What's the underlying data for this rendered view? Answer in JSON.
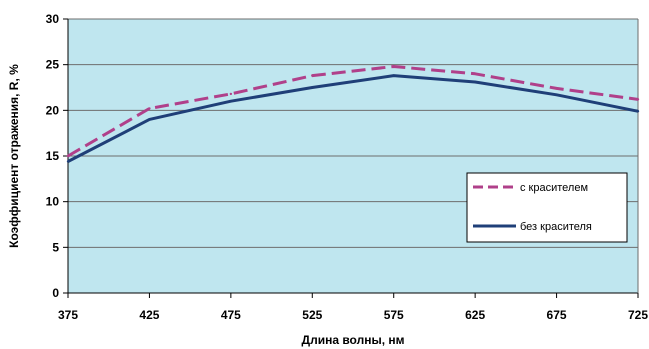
{
  "chart_data": {
    "type": "line",
    "xlabel": "Длина волны, нм",
    "ylabel": "Коэффициент отражения, R, %",
    "x": [
      375,
      425,
      475,
      525,
      575,
      625,
      675,
      725
    ],
    "x_ticks": [
      "375",
      "425",
      "475",
      "525",
      "575",
      "625",
      "675",
      "725"
    ],
    "y_ticks": [
      "0",
      "5",
      "10",
      "15",
      "20",
      "25",
      "30"
    ],
    "ylim": [
      0,
      30
    ],
    "grid": true,
    "legend_position": "right",
    "plot_background": "#bfe6ef",
    "series": [
      {
        "name": "с красителем",
        "color": "#b0408a",
        "style": "dashed",
        "values": [
          15.0,
          20.2,
          21.8,
          23.8,
          24.8,
          24.0,
          22.4,
          21.2
        ]
      },
      {
        "name": "без красителя",
        "color": "#1f3f78",
        "style": "solid",
        "values": [
          14.4,
          19.0,
          21.0,
          22.5,
          23.8,
          23.1,
          21.7,
          19.9
        ]
      }
    ]
  }
}
